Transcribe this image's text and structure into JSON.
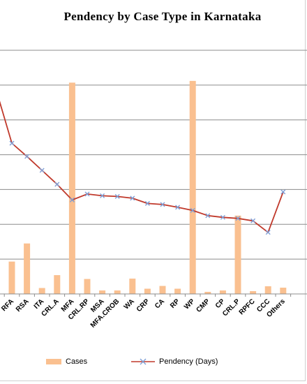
{
  "chart_data": {
    "type": "bar",
    "title": "Pendency by Case Type in Karnataka",
    "categories": [
      "RFA",
      "RSA",
      "ITA",
      "CRL.A",
      "MFA",
      "CRL.RP",
      "MSA",
      "MFA.CROB",
      "WA",
      "CRP",
      "CA",
      "RP",
      "WP",
      "CMP",
      "CP",
      "CRL.P",
      "RPFC",
      "CCC",
      "Others"
    ],
    "series": [
      {
        "name": "Cases",
        "kind": "bar",
        "color": "#fac090",
        "values": [
          0.93,
          1.45,
          0.17,
          0.54,
          6.07,
          0.43,
          0.1,
          0.1,
          0.44,
          0.15,
          0.23,
          0.15,
          6.12,
          0.06,
          0.1,
          2.25,
          0.08,
          0.22,
          0.18
        ]
      },
      {
        "name": "Pendency (Days)",
        "kind": "line",
        "color": "#c0392b",
        "marker_color": "#7f9fd6",
        "values": [
          4.33,
          3.95,
          3.55,
          3.15,
          2.7,
          2.87,
          2.82,
          2.8,
          2.75,
          2.6,
          2.57,
          2.49,
          2.4,
          2.25,
          2.2,
          2.17,
          2.1,
          1.77,
          2.93
        ],
        "leading_value": 5.8
      }
    ],
    "ylim": [
      0,
      7
    ],
    "y_gridlines": [
      0,
      1,
      2,
      3,
      4,
      5,
      6,
      7
    ],
    "grid": true,
    "legend_position": "bottom"
  }
}
